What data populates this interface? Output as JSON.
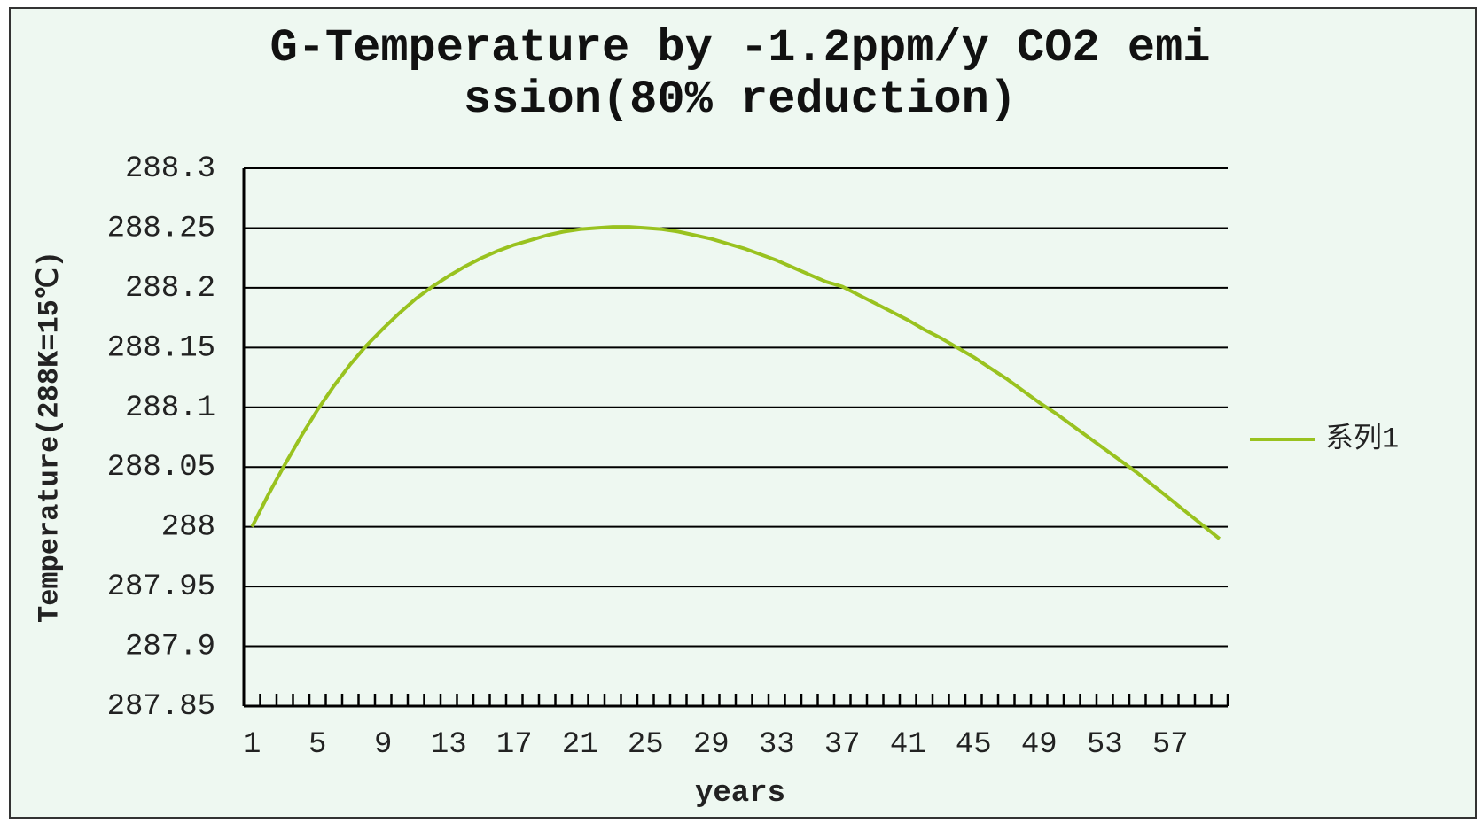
{
  "chart_data": {
    "type": "line",
    "title": "G-Temperature by -1.2ppm/y CO2 emission(80% reduction)",
    "x_label": "years",
    "y_label": "Temperature(288K=15℃)",
    "categories": [
      1,
      null,
      null,
      null,
      5,
      null,
      null,
      null,
      9,
      null,
      null,
      null,
      13,
      null,
      null,
      null,
      17,
      null,
      null,
      null,
      21,
      null,
      null,
      null,
      25,
      null,
      null,
      null,
      29,
      null,
      null,
      null,
      33,
      null,
      null,
      null,
      37,
      null,
      null,
      null,
      41,
      null,
      null,
      null,
      45,
      null,
      null,
      null,
      49,
      null,
      null,
      null,
      53,
      null,
      null,
      null,
      57,
      null,
      null,
      null
    ],
    "series": [
      {
        "name": "系列1",
        "color": "#99c21f",
        "values": [
          288.0,
          288.027,
          288.052,
          288.076,
          288.098,
          288.118,
          288.136,
          288.152,
          288.166,
          288.179,
          288.191,
          288.201,
          288.21,
          288.218,
          288.225,
          288.231,
          288.236,
          288.24,
          288.244,
          288.247,
          288.249,
          288.25,
          288.251,
          288.251,
          288.25,
          288.249,
          288.247,
          288.244,
          288.241,
          288.237,
          288.233,
          288.228,
          288.223,
          288.217,
          288.211,
          288.205,
          288.201,
          288.194,
          288.187,
          288.18,
          288.173,
          288.165,
          288.158,
          288.15,
          288.142,
          288.133,
          288.124,
          288.114,
          288.104,
          288.095,
          288.085,
          288.075,
          288.065,
          288.055,
          288.045,
          288.034,
          288.023,
          288.012,
          288.001,
          287.99
        ]
      }
    ],
    "ylim": [
      287.85,
      288.3
    ],
    "yticks": [
      287.85,
      287.9,
      287.95,
      288,
      288.05,
      288.1,
      288.15,
      288.2,
      288.25,
      288.3
    ],
    "grid": true,
    "legend": "right"
  }
}
